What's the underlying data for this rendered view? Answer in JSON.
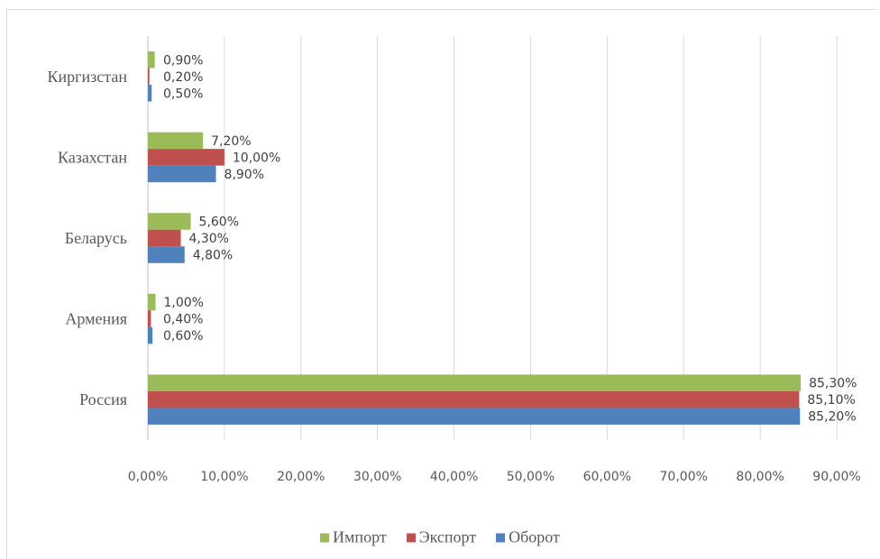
{
  "chart_data": {
    "type": "bar",
    "orientation": "horizontal",
    "categories": [
      "Киргизстан",
      "Казахстан",
      "Беларусь",
      "Армения",
      "Россия"
    ],
    "series": [
      {
        "name": "Импорт",
        "color": "#9bbb59",
        "values": [
          0.9,
          7.2,
          5.6,
          1.0,
          85.3
        ],
        "labels": [
          "0,90%",
          "7,20%",
          "5,60%",
          "1,00%",
          "85,30%"
        ]
      },
      {
        "name": "Экспорт",
        "color": "#c0504d",
        "values": [
          0.2,
          10.0,
          4.3,
          0.4,
          85.1
        ],
        "labels": [
          "0,20%",
          "10,00%",
          "4,30%",
          "0,40%",
          "85,10%"
        ]
      },
      {
        "name": "Оборот",
        "color": "#4f81bd",
        "values": [
          0.5,
          8.9,
          4.8,
          0.6,
          85.2
        ],
        "labels": [
          "0,50%",
          "8,90%",
          "4,80%",
          "0,60%",
          "85,20%"
        ]
      }
    ],
    "xlim": [
      0,
      90
    ],
    "xticks": [
      "0,00%",
      "10,00%",
      "20,00%",
      "30,00%",
      "40,00%",
      "50,00%",
      "60,00%",
      "70,00%",
      "80,00%",
      "90,00%"
    ],
    "grid": "vertical",
    "legend": "bottom",
    "data_labels": true
  }
}
